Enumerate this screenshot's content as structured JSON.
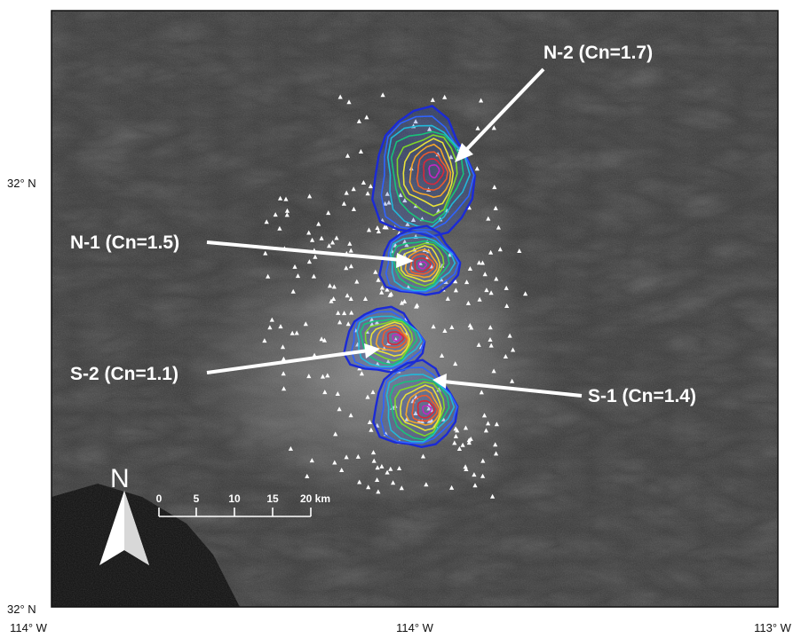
{
  "axes": {
    "lat_labels": [
      {
        "id": "lat-32-upper",
        "text": "32° N"
      },
      {
        "id": "lat-32-lower",
        "text": "32° N"
      }
    ],
    "lon_labels": [
      {
        "id": "lon-114-left",
        "text": "114° W"
      },
      {
        "id": "lon-114-center",
        "text": "114° W"
      },
      {
        "id": "lon-113-right",
        "text": "113° W"
      }
    ]
  },
  "clusters": [
    {
      "id": "N-2",
      "label": "N-2 (Cn=1.7)"
    },
    {
      "id": "N-1",
      "label": "N-1 (Cn=1.5)"
    },
    {
      "id": "S-2",
      "label": "S-2 (Cn=1.1)"
    },
    {
      "id": "S-1",
      "label": "S-1 (Cn=1.4)"
    }
  ],
  "scale_bar": {
    "ticks": [
      "0",
      "5",
      "10",
      "15",
      "20 km"
    ]
  },
  "north_arrow": {
    "letter": "N"
  },
  "colors": {
    "contours": [
      "#1b2ad6",
      "#2f63ff",
      "#22b8d8",
      "#18c27a",
      "#7fd62a",
      "#e8e23a",
      "#f2a52c",
      "#ec5a2e",
      "#d8283a",
      "#c427c4"
    ],
    "background_terrain": "#3c3c3c",
    "station_marker": "#ffffff"
  }
}
